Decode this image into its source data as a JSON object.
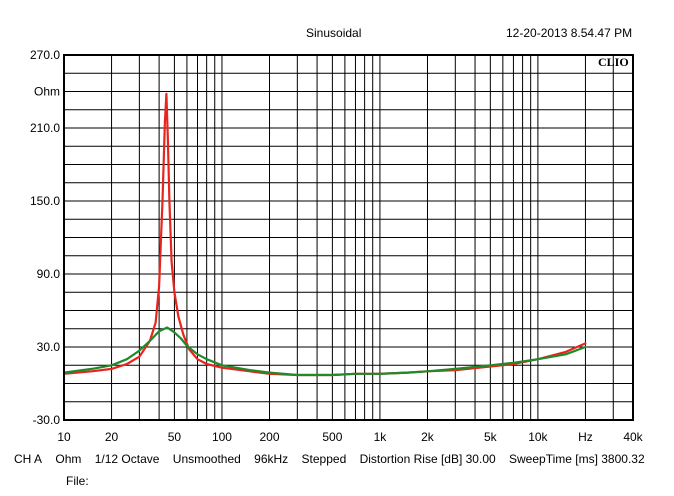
{
  "header": {
    "title": "Sinusoidal",
    "datetime": "12-20-2013 8.54.47 PM"
  },
  "chart_data": {
    "type": "line",
    "x_scale": "log",
    "xlim": [
      10,
      40000
    ],
    "ylim": [
      -30,
      270
    ],
    "x_unit": "Hz",
    "y_unit": "Ohm",
    "logo": "CLIO",
    "grid": true,
    "yticks": [
      {
        "value": 270,
        "label": "270.0"
      },
      {
        "value": 240,
        "label": "Ohm"
      },
      {
        "value": 210,
        "label": "210.0"
      },
      {
        "value": 150,
        "label": "150.0"
      },
      {
        "value": 90,
        "label": "90.0"
      },
      {
        "value": 30,
        "label": "30.0"
      },
      {
        "value": -30,
        "label": "-30.0"
      }
    ],
    "xticks": [
      {
        "value": 10,
        "label": "10"
      },
      {
        "value": 20,
        "label": "20"
      },
      {
        "value": 50,
        "label": "50"
      },
      {
        "value": 100,
        "label": "100"
      },
      {
        "value": 200,
        "label": "200"
      },
      {
        "value": 500,
        "label": "500"
      },
      {
        "value": 1000,
        "label": "1k"
      },
      {
        "value": 2000,
        "label": "2k"
      },
      {
        "value": 5000,
        "label": "5k"
      },
      {
        "value": 10000,
        "label": "10k"
      },
      {
        "value": 20000,
        "label": "Hz"
      },
      {
        "value": 40000,
        "label": "40k"
      }
    ],
    "series": [
      {
        "color": "#e8241c",
        "x": [
          10,
          15,
          20,
          25,
          30,
          35,
          38,
          40,
          42,
          43.5,
          44.5,
          45.5,
          46.5,
          48,
          50,
          53,
          57,
          62,
          70,
          80,
          100,
          150,
          200,
          300,
          500,
          700,
          1000,
          1500,
          2000,
          3000,
          5000,
          7000,
          10000,
          15000,
          20000
        ],
        "y": [
          8,
          10,
          12,
          16,
          22,
          35,
          50,
          80,
          150,
          215,
          238,
          200,
          150,
          100,
          75,
          55,
          40,
          28,
          20,
          16,
          13,
          10,
          8,
          7,
          7,
          8,
          8,
          9,
          10,
          11,
          14,
          16,
          20,
          26,
          33
        ]
      },
      {
        "color": "#1e8a2a",
        "x": [
          10,
          15,
          20,
          25,
          30,
          35,
          40,
          45,
          50,
          55,
          60,
          70,
          80,
          100,
          150,
          200,
          300,
          500,
          700,
          1000,
          1500,
          2000,
          3000,
          5000,
          7000,
          10000,
          15000,
          20000
        ],
        "y": [
          9,
          12,
          15,
          20,
          27,
          35,
          43,
          46,
          42,
          37,
          31,
          24,
          20,
          15,
          11,
          9,
          7,
          7,
          8,
          8,
          9,
          10,
          12,
          15,
          17,
          20,
          24,
          30
        ]
      }
    ]
  },
  "footer": {
    "channel": "CH A",
    "unit": "Ohm",
    "smoothing_octave": "1/12 Octave",
    "smoothing": "Unsmoothed",
    "sample_rate": "96kHz",
    "mode": "Stepped",
    "distortion": "Distortion Rise [dB] 30.00",
    "sweep_time": "SweepTime [ms] 3800.32",
    "file_label": "File:"
  }
}
